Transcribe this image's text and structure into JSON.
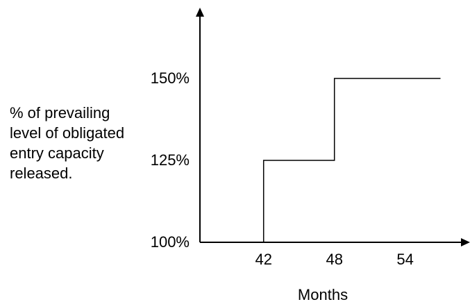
{
  "chart_data": {
    "type": "line",
    "title": "",
    "xlabel": "Months",
    "ylabel_lines": [
      "% of prevailing",
      "level of obligated",
      "entry capacity",
      "released."
    ],
    "x_ticks": [
      "42",
      "48",
      "54"
    ],
    "x_tick_values": [
      42,
      48,
      54
    ],
    "y_ticks": [
      "100%",
      "125%",
      "150%"
    ],
    "y_tick_values": [
      100,
      125,
      150
    ],
    "xlim": [
      36.6,
      59.5
    ],
    "ylim": [
      100,
      150
    ],
    "series": [
      {
        "x": [
          42,
          42,
          48,
          48,
          57
        ],
        "y": [
          100,
          125,
          125,
          150,
          150
        ]
      }
    ],
    "grid": false,
    "legend": "none",
    "line_color": "#000000"
  }
}
